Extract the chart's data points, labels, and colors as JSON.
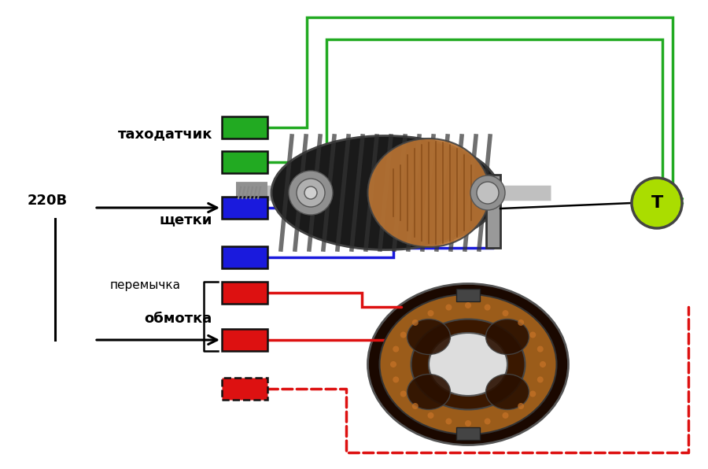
{
  "bg_color": "#ffffff",
  "green_color": "#22aa22",
  "blue_color": "#1a1add",
  "red_color": "#dd1111",
  "gray_color": "#999999",
  "black_color": "#000000",
  "lime_color": "#aadd00",
  "lw_wire": 2.5,
  "label_tahodatchik": "таходатчик",
  "label_shchetki": "щетки",
  "label_peremychka": "перемычка",
  "label_obmotka": "обмотка",
  "label_voltage": "220В",
  "label_T": "T",
  "figsize": [
    9.0,
    5.96
  ],
  "dpi": 100
}
